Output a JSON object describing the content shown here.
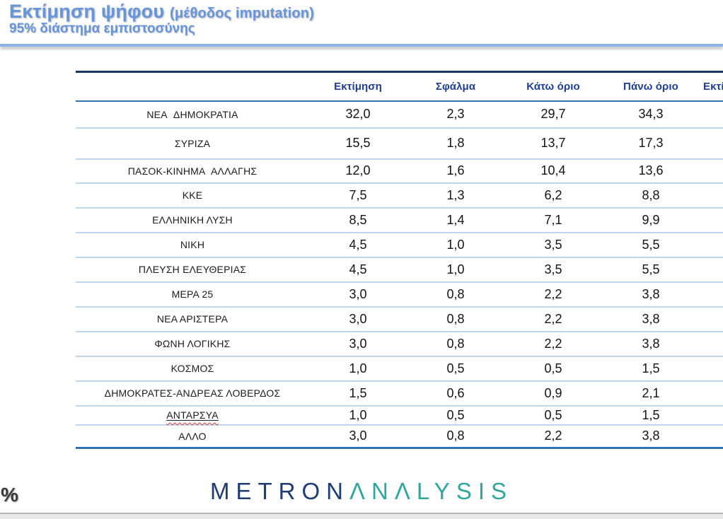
{
  "header": {
    "title": "Εκτίμηση ψήφου",
    "title_method": "(μέθοδος imputation)",
    "subtitle": "95% διάστημα εμπιστοσύνης"
  },
  "table": {
    "columns": [
      "Εκτίμηση",
      "Σφάλμα",
      "Κάτω όριο",
      "Πάνω όριο",
      "Εκτί"
    ],
    "rows": [
      {
        "party": "ΝΕΑ  ΔΗΜΟΚΡΑΤΙΑ",
        "estimate": "32,0",
        "error": "2,3",
        "lower": "29,7",
        "upper": "34,3"
      },
      {
        "party": "ΣΥΡΙΖΑ",
        "estimate": "15,5",
        "error": "1,8",
        "lower": "13,7",
        "upper": "17,3"
      },
      {
        "party": "ΠΑΣΟΚ-ΚΙΝΗΜΑ  ΑΛΛΑΓΗΣ",
        "estimate": "12,0",
        "error": "1,6",
        "lower": "10,4",
        "upper": "13,6"
      },
      {
        "party": "ΚΚΕ",
        "estimate": "7,5",
        "error": "1,3",
        "lower": "6,2",
        "upper": "8,8"
      },
      {
        "party": "ΕΛΛΗΝΙΚΗ ΛΥΣΗ",
        "estimate": "8,5",
        "error": "1,4",
        "lower": "7,1",
        "upper": "9,9"
      },
      {
        "party": "ΝΙΚΗ",
        "estimate": "4,5",
        "error": "1,0",
        "lower": "3,5",
        "upper": "5,5"
      },
      {
        "party": "ΠΛΕΥΣΗ ΕΛΕΥΘΕΡΙΑΣ",
        "estimate": "4,5",
        "error": "1,0",
        "lower": "3,5",
        "upper": "5,5"
      },
      {
        "party": "ΜΕΡΑ 25",
        "estimate": "3,0",
        "error": "0,8",
        "lower": "2,2",
        "upper": "3,8"
      },
      {
        "party": "ΝΕΑ ΑΡΙΣΤΕΡΑ",
        "estimate": "3,0",
        "error": "0,8",
        "lower": "2,2",
        "upper": "3,8"
      },
      {
        "party": "ΦΩΝΗ ΛΟΓΙΚΗΣ",
        "estimate": "3,0",
        "error": "0,8",
        "lower": "2,2",
        "upper": "3,8"
      },
      {
        "party": "ΚΟΣΜΟΣ",
        "estimate": "1,0",
        "error": "0,5",
        "lower": "0,5",
        "upper": "1,5"
      },
      {
        "party": "ΔΗΜΟΚΡΑΤΕΣ-ΑΝΔΡΕΑΣ ΛΟΒΕΡΔΟΣ",
        "estimate": "1,5",
        "error": "0,6",
        "lower": "0,9",
        "upper": "2,1"
      },
      {
        "party": "ΑΝΤΑΡΣΥΑ",
        "estimate": "1,0",
        "error": "0,5",
        "lower": "0,5",
        "upper": "1,5",
        "decoration": "solid-underline-plus-red-wavy-spellcheck"
      },
      {
        "party": "ΑΛΛΟ",
        "estimate": "3,0",
        "error": "0,8",
        "lower": "2,2",
        "upper": "3,8"
      }
    ]
  },
  "footer": {
    "percent_symbol": "%",
    "logo_part1": "METRON",
    "logo_part2": "ΛNΛLYSIS"
  },
  "colors": {
    "title_blue": "#6695da",
    "title_rule_blue": "#8db3ea",
    "table_top_border_navy": "#17375e",
    "header_text_blue": "#1d3e94",
    "strong_line_blue": "#2e74b5",
    "row_line_light_blue": "#bdd7ee",
    "body_text": "#1c1c1c",
    "logo_navy": "#1f3b73",
    "logo_teal": "#2fa79c",
    "spellcheck_red": "#d93a32"
  }
}
